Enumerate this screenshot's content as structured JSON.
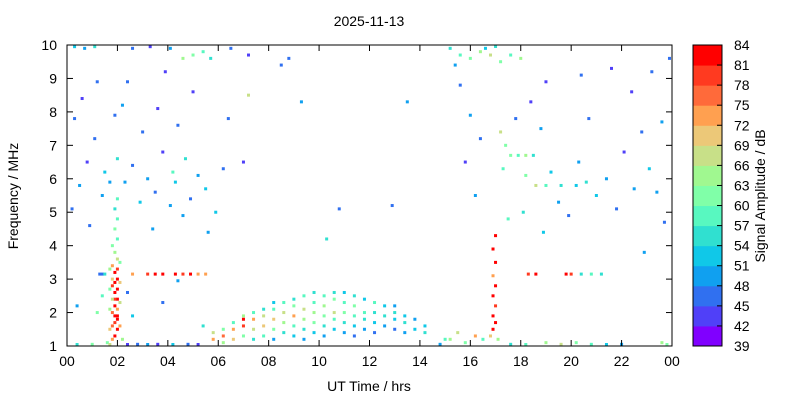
{
  "chart_data": {
    "type": "heatmap",
    "title": "2025-11-13",
    "xlabel": "UT Time / hrs",
    "ylabel": "Frequency / MHz",
    "colorbar_label": "Signal Amplitude / dB",
    "xlim": [
      0,
      24
    ],
    "ylim": [
      1,
      10
    ],
    "x_ticks": [
      "00",
      "02",
      "04",
      "06",
      "08",
      "10",
      "12",
      "14",
      "16",
      "18",
      "20",
      "22",
      "00"
    ],
    "y_ticks": [
      "1",
      "2",
      "3",
      "4",
      "5",
      "6",
      "7",
      "8",
      "9",
      "10"
    ],
    "colorbar_range": [
      39,
      84
    ],
    "colorbar_ticks": [
      "39",
      "42",
      "45",
      "48",
      "51",
      "54",
      "57",
      "60",
      "63",
      "66",
      "69",
      "72",
      "75",
      "78",
      "81",
      "84"
    ],
    "colorbar_colors": [
      "#8000ff",
      "#5040f8",
      "#3070f0",
      "#10a0f0",
      "#10c8e8",
      "#30e0d0",
      "#58f8c0",
      "#80ffa8",
      "#a0f890",
      "#c8e088",
      "#ecc878",
      "#ffa050",
      "#ff6a3a",
      "#ff3a20",
      "#ff0000"
    ],
    "grid": false,
    "cells_columns": [
      "time_hrs",
      "freq_mhz",
      "amplitude_db"
    ],
    "cells": [
      [
        1.8,
        1.2,
        72
      ],
      [
        1.9,
        1.3,
        81
      ],
      [
        2.0,
        1.5,
        84
      ],
      [
        1.9,
        1.7,
        78
      ],
      [
        2.0,
        1.9,
        84
      ],
      [
        1.8,
        2.0,
        75
      ],
      [
        1.9,
        2.2,
        84
      ],
      [
        2.0,
        2.4,
        81
      ],
      [
        1.9,
        2.6,
        84
      ],
      [
        1.8,
        2.8,
        78
      ],
      [
        2.0,
        3.0,
        84
      ],
      [
        1.9,
        3.2,
        81
      ],
      [
        1.8,
        3.4,
        72
      ],
      [
        2.0,
        3.6,
        66
      ],
      [
        1.9,
        3.8,
        63
      ],
      [
        1.8,
        4.0,
        60
      ],
      [
        2.0,
        4.2,
        57
      ],
      [
        1.9,
        4.5,
        60
      ],
      [
        2.0,
        4.8,
        57
      ],
      [
        1.9,
        5.1,
        54
      ],
      [
        2.0,
        5.4,
        57
      ],
      [
        1.7,
        1.5,
        69
      ],
      [
        2.1,
        1.6,
        72
      ],
      [
        1.7,
        2.1,
        63
      ],
      [
        2.1,
        2.3,
        66
      ],
      [
        1.7,
        2.7,
        60
      ],
      [
        2.1,
        2.9,
        69
      ],
      [
        1.7,
        3.3,
        63
      ],
      [
        2.1,
        3.5,
        60
      ],
      [
        1.6,
        1.1,
        60
      ],
      [
        2.2,
        1.2,
        63
      ],
      [
        1.7,
        1.0,
        66
      ],
      [
        1.8,
        1.6,
        75
      ],
      [
        2.0,
        2.7,
        84
      ],
      [
        1.9,
        2.4,
        78
      ],
      [
        2.0,
        1.8,
        81
      ],
      [
        1.8,
        2.4,
        66
      ],
      [
        2.0,
        2.1,
        72
      ],
      [
        1.8,
        3.0,
        69
      ],
      [
        2.0,
        3.3,
        78
      ],
      [
        1.9,
        2.9,
        84
      ],
      [
        1.9,
        1.9,
        84
      ],
      [
        1.3,
        3.15,
        45
      ],
      [
        1.4,
        3.15,
        45
      ],
      [
        1.5,
        3.15,
        54
      ],
      [
        2.6,
        3.15,
        72
      ],
      [
        3.2,
        3.15,
        78
      ],
      [
        3.5,
        3.15,
        81
      ],
      [
        3.8,
        3.15,
        81
      ],
      [
        4.3,
        3.15,
        84
      ],
      [
        4.6,
        3.15,
        78
      ],
      [
        4.9,
        3.15,
        81
      ],
      [
        5.2,
        3.15,
        72
      ],
      [
        5.5,
        3.15,
        72
      ],
      [
        4.4,
        2.95,
        48
      ],
      [
        5.8,
        1.2,
        72
      ],
      [
        5.8,
        1.4,
        66
      ],
      [
        6.2,
        1.1,
        63
      ],
      [
        6.2,
        1.3,
        75
      ],
      [
        6.2,
        1.5,
        60
      ],
      [
        6.6,
        1.2,
        69
      ],
      [
        6.6,
        1.5,
        72
      ],
      [
        6.6,
        1.7,
        57
      ],
      [
        7.0,
        1.3,
        60
      ],
      [
        7.0,
        1.6,
        78
      ],
      [
        7.0,
        1.8,
        81
      ],
      [
        7.0,
        1.9,
        63
      ],
      [
        7.4,
        1.2,
        54
      ],
      [
        7.4,
        1.5,
        66
      ],
      [
        7.4,
        1.8,
        72
      ],
      [
        7.4,
        2.0,
        57
      ],
      [
        7.8,
        1.3,
        57
      ],
      [
        7.8,
        1.6,
        69
      ],
      [
        7.8,
        1.9,
        66
      ],
      [
        7.8,
        2.1,
        54
      ],
      [
        8.2,
        1.2,
        48
      ],
      [
        8.2,
        1.5,
        60
      ],
      [
        8.2,
        1.8,
        69
      ],
      [
        8.2,
        2.1,
        57
      ],
      [
        8.2,
        2.3,
        51
      ],
      [
        8.6,
        1.4,
        54
      ],
      [
        8.6,
        1.7,
        63
      ],
      [
        8.6,
        2.0,
        66
      ],
      [
        8.6,
        2.3,
        57
      ],
      [
        9.0,
        1.3,
        51
      ],
      [
        9.0,
        1.6,
        57
      ],
      [
        9.0,
        1.9,
        72
      ],
      [
        9.0,
        2.2,
        60
      ],
      [
        9.0,
        2.4,
        54
      ],
      [
        9.4,
        1.2,
        48
      ],
      [
        9.4,
        1.5,
        54
      ],
      [
        9.4,
        1.8,
        63
      ],
      [
        9.4,
        2.1,
        66
      ],
      [
        9.4,
        2.5,
        57
      ],
      [
        9.8,
        1.4,
        51
      ],
      [
        9.8,
        1.7,
        60
      ],
      [
        9.8,
        2.0,
        63
      ],
      [
        9.8,
        2.3,
        57
      ],
      [
        9.8,
        2.6,
        54
      ],
      [
        10.2,
        1.3,
        48
      ],
      [
        10.2,
        1.6,
        54
      ],
      [
        10.2,
        1.9,
        60
      ],
      [
        10.2,
        2.2,
        63
      ],
      [
        10.2,
        2.5,
        57
      ],
      [
        10.6,
        1.5,
        51
      ],
      [
        10.6,
        1.8,
        57
      ],
      [
        10.6,
        2.0,
        66
      ],
      [
        10.6,
        2.4,
        60
      ],
      [
        10.6,
        2.6,
        54
      ],
      [
        11.0,
        1.4,
        48
      ],
      [
        11.0,
        1.7,
        54
      ],
      [
        11.0,
        2.0,
        60
      ],
      [
        11.0,
        2.3,
        57
      ],
      [
        11.0,
        2.6,
        51
      ],
      [
        11.4,
        1.3,
        45
      ],
      [
        11.4,
        1.6,
        51
      ],
      [
        11.4,
        1.9,
        57
      ],
      [
        11.4,
        2.2,
        60
      ],
      [
        11.4,
        2.5,
        54
      ],
      [
        11.8,
        1.5,
        48
      ],
      [
        11.8,
        1.8,
        54
      ],
      [
        11.8,
        2.0,
        57
      ],
      [
        11.8,
        2.4,
        51
      ],
      [
        12.2,
        1.4,
        45
      ],
      [
        12.2,
        1.7,
        51
      ],
      [
        12.2,
        2.0,
        54
      ],
      [
        12.2,
        2.3,
        57
      ],
      [
        12.6,
        1.6,
        48
      ],
      [
        12.6,
        1.9,
        54
      ],
      [
        12.6,
        2.2,
        51
      ],
      [
        13.0,
        1.5,
        45
      ],
      [
        13.0,
        1.8,
        51
      ],
      [
        13.0,
        2.0,
        54
      ],
      [
        13.0,
        2.2,
        48
      ],
      [
        13.4,
        1.4,
        48
      ],
      [
        13.4,
        1.7,
        54
      ],
      [
        13.4,
        1.9,
        51
      ],
      [
        13.8,
        1.5,
        51
      ],
      [
        13.8,
        1.8,
        48
      ],
      [
        14.2,
        1.4,
        54
      ],
      [
        14.2,
        1.6,
        51
      ],
      [
        16.9,
        1.5,
        81
      ],
      [
        17.0,
        1.7,
        84
      ],
      [
        16.9,
        1.9,
        84
      ],
      [
        17.0,
        2.2,
        78
      ],
      [
        16.9,
        2.5,
        84
      ],
      [
        17.0,
        2.8,
        81
      ],
      [
        16.9,
        3.1,
        72
      ],
      [
        17.0,
        3.5,
        81
      ],
      [
        16.9,
        3.9,
        84
      ],
      [
        17.0,
        4.3,
        81
      ],
      [
        16.8,
        1.3,
        69
      ],
      [
        17.1,
        1.2,
        63
      ],
      [
        15.2,
        1.2,
        63
      ],
      [
        15.5,
        1.4,
        66
      ],
      [
        15.8,
        1.1,
        60
      ],
      [
        16.2,
        1.3,
        72
      ],
      [
        16.5,
        1.2,
        57
      ],
      [
        18.3,
        3.15,
        78
      ],
      [
        18.6,
        3.15,
        81
      ],
      [
        19.8,
        3.15,
        81
      ],
      [
        20.0,
        3.15,
        78
      ],
      [
        20.4,
        3.15,
        54
      ],
      [
        20.8,
        3.15,
        57
      ],
      [
        21.2,
        3.15,
        54
      ],
      [
        0.4,
        1.0,
        54
      ],
      [
        1.0,
        1.05,
        60
      ],
      [
        2.4,
        1.0,
        42
      ],
      [
        2.8,
        1.05,
        45
      ],
      [
        3.2,
        1.0,
        48
      ],
      [
        3.6,
        1.05,
        42
      ],
      [
        4.2,
        1.0,
        51
      ],
      [
        4.8,
        1.05,
        45
      ],
      [
        5.2,
        1.0,
        42
      ],
      [
        14.8,
        1.05,
        48
      ],
      [
        15.0,
        1.2,
        57
      ],
      [
        17.6,
        1.05,
        54
      ],
      [
        18.2,
        1.0,
        57
      ],
      [
        19.0,
        1.1,
        63
      ],
      [
        19.6,
        1.05,
        66
      ],
      [
        20.2,
        1.1,
        60
      ],
      [
        20.8,
        1.05,
        57
      ],
      [
        21.4,
        1.0,
        51
      ],
      [
        22.0,
        1.05,
        48
      ],
      [
        23.6,
        1.1,
        63
      ],
      [
        23.8,
        1.0,
        60
      ],
      [
        17.6,
        6.7,
        60
      ],
      [
        17.9,
        6.7,
        57
      ],
      [
        18.2,
        6.7,
        63
      ],
      [
        18.5,
        6.7,
        54
      ],
      [
        18.2,
        6.1,
        60
      ],
      [
        18.6,
        5.8,
        66
      ],
      [
        19.0,
        5.8,
        57
      ],
      [
        19.6,
        5.8,
        54
      ],
      [
        20.2,
        5.8,
        51
      ],
      [
        20.6,
        5.9,
        54
      ],
      [
        17.2,
        7.4,
        66
      ],
      [
        17.4,
        7.0,
        60
      ],
      [
        17.3,
        6.3,
        57
      ],
      [
        15.2,
        9.9,
        54
      ],
      [
        15.6,
        9.7,
        57
      ],
      [
        16.0,
        9.6,
        60
      ],
      [
        16.4,
        9.8,
        63
      ],
      [
        16.8,
        9.7,
        66
      ],
      [
        17.2,
        9.5,
        60
      ],
      [
        17.6,
        9.7,
        57
      ],
      [
        18.0,
        9.6,
        63
      ],
      [
        15.4,
        9.4,
        48
      ],
      [
        16.6,
        9.9,
        51
      ],
      [
        17.0,
        10.0,
        54
      ],
      [
        0.3,
        9.95,
        51
      ],
      [
        0.7,
        9.9,
        48
      ],
      [
        1.1,
        9.95,
        54
      ],
      [
        2.6,
        9.9,
        45
      ],
      [
        3.3,
        9.95,
        42
      ],
      [
        4.1,
        9.9,
        48
      ],
      [
        4.6,
        9.6,
        63
      ],
      [
        5.0,
        9.7,
        60
      ],
      [
        5.4,
        9.8,
        57
      ],
      [
        5.7,
        9.6,
        54
      ],
      [
        6.5,
        9.9,
        45
      ],
      [
        7.2,
        9.7,
        42
      ],
      [
        8.8,
        9.6,
        45
      ],
      [
        0.2,
        5.1,
        45
      ],
      [
        0.5,
        5.8,
        48
      ],
      [
        0.8,
        6.5,
        42
      ],
      [
        1.1,
        7.2,
        45
      ],
      [
        1.4,
        5.5,
        48
      ],
      [
        0.3,
        7.8,
        45
      ],
      [
        0.6,
        8.4,
        42
      ],
      [
        1.2,
        8.9,
        45
      ],
      [
        1.5,
        6.2,
        51
      ],
      [
        2.3,
        5.9,
        48
      ],
      [
        2.6,
        6.4,
        45
      ],
      [
        2.9,
        5.3,
        51
      ],
      [
        3.2,
        6.0,
        48
      ],
      [
        3.5,
        5.6,
        45
      ],
      [
        3.8,
        6.8,
        42
      ],
      [
        4.1,
        5.2,
        48
      ],
      [
        4.3,
        5.9,
        51
      ],
      [
        4.6,
        4.9,
        48
      ],
      [
        4.9,
        5.4,
        45
      ],
      [
        5.2,
        6.1,
        48
      ],
      [
        5.5,
        5.7,
        51
      ],
      [
        3.0,
        7.4,
        45
      ],
      [
        3.6,
        8.1,
        42
      ],
      [
        4.4,
        7.6,
        45
      ],
      [
        5.0,
        8.6,
        42
      ],
      [
        2.4,
        8.9,
        45
      ],
      [
        3.9,
        9.2,
        42
      ],
      [
        5.6,
        4.4,
        48
      ],
      [
        5.9,
        5.0,
        51
      ],
      [
        6.2,
        6.3,
        45
      ],
      [
        1.9,
        7.9,
        45
      ],
      [
        2.2,
        8.2,
        48
      ],
      [
        0.9,
        4.6,
        45
      ],
      [
        3.4,
        4.5,
        48
      ],
      [
        4.7,
        6.6,
        54
      ],
      [
        4.2,
        6.2,
        57
      ],
      [
        2.0,
        6.6,
        54
      ],
      [
        1.7,
        5.9,
        48
      ],
      [
        7.2,
        8.5,
        66
      ],
      [
        8.5,
        9.4,
        45
      ],
      [
        9.3,
        8.3,
        48
      ],
      [
        12.9,
        5.2,
        45
      ],
      [
        10.8,
        5.1,
        45
      ],
      [
        13.5,
        8.3,
        48
      ],
      [
        10.3,
        4.2,
        54
      ],
      [
        7.0,
        6.5,
        42
      ],
      [
        6.4,
        7.8,
        45
      ],
      [
        15.6,
        8.8,
        45
      ],
      [
        16.0,
        7.9,
        48
      ],
      [
        16.4,
        7.2,
        45
      ],
      [
        15.8,
        6.5,
        42
      ],
      [
        16.2,
        5.5,
        48
      ],
      [
        17.8,
        7.8,
        45
      ],
      [
        18.4,
        8.3,
        42
      ],
      [
        18.8,
        7.5,
        48
      ],
      [
        19.2,
        6.2,
        51
      ],
      [
        19.5,
        5.3,
        48
      ],
      [
        19.9,
        4.9,
        45
      ],
      [
        20.3,
        6.5,
        48
      ],
      [
        20.7,
        7.8,
        45
      ],
      [
        21.0,
        5.5,
        51
      ],
      [
        21.4,
        6.0,
        48
      ],
      [
        21.8,
        5.1,
        45
      ],
      [
        22.1,
        6.8,
        42
      ],
      [
        22.5,
        5.7,
        48
      ],
      [
        22.8,
        7.4,
        45
      ],
      [
        23.1,
        6.3,
        51
      ],
      [
        23.4,
        5.6,
        48
      ],
      [
        23.7,
        4.7,
        45
      ],
      [
        22.4,
        8.6,
        42
      ],
      [
        23.2,
        9.2,
        45
      ],
      [
        21.6,
        9.3,
        42
      ],
      [
        20.4,
        9.1,
        45
      ],
      [
        23.6,
        7.7,
        48
      ],
      [
        19.0,
        8.9,
        42
      ],
      [
        18.1,
        5.0,
        54
      ],
      [
        17.5,
        4.8,
        57
      ],
      [
        18.9,
        4.4,
        51
      ],
      [
        23.9,
        9.6,
        45
      ],
      [
        22.9,
        3.8,
        48
      ],
      [
        2.4,
        2.6,
        45
      ],
      [
        0.4,
        2.2,
        48
      ],
      [
        3.8,
        2.3,
        45
      ],
      [
        2.6,
        1.9,
        51
      ],
      [
        5.4,
        1.6,
        54
      ],
      [
        1.2,
        2.0,
        60
      ],
      [
        1.4,
        2.5,
        57
      ]
    ]
  }
}
